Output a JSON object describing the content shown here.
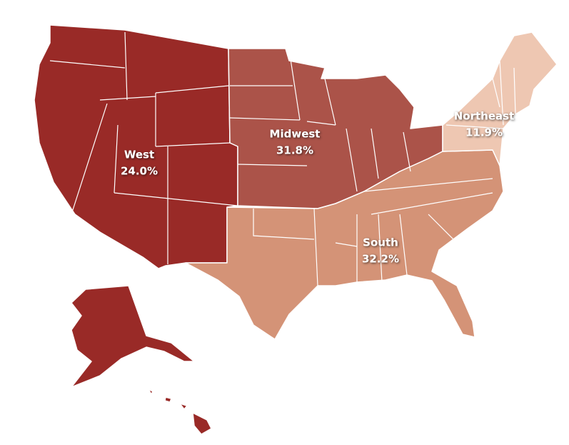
{
  "regions": [
    {
      "name": "West",
      "value": 24.0,
      "value_label": "24.0%",
      "color": "#992a27"
    },
    {
      "name": "Midwest",
      "value": 31.8,
      "value_label": "31.8%",
      "color": "#ab5349"
    },
    {
      "name": "South",
      "value": 32.2,
      "value_label": "32.2%",
      "color": "#d49377"
    },
    {
      "name": "Northeast",
      "value": 11.9,
      "value_label": "11.9%",
      "color": "#eec7b2"
    }
  ]
}
